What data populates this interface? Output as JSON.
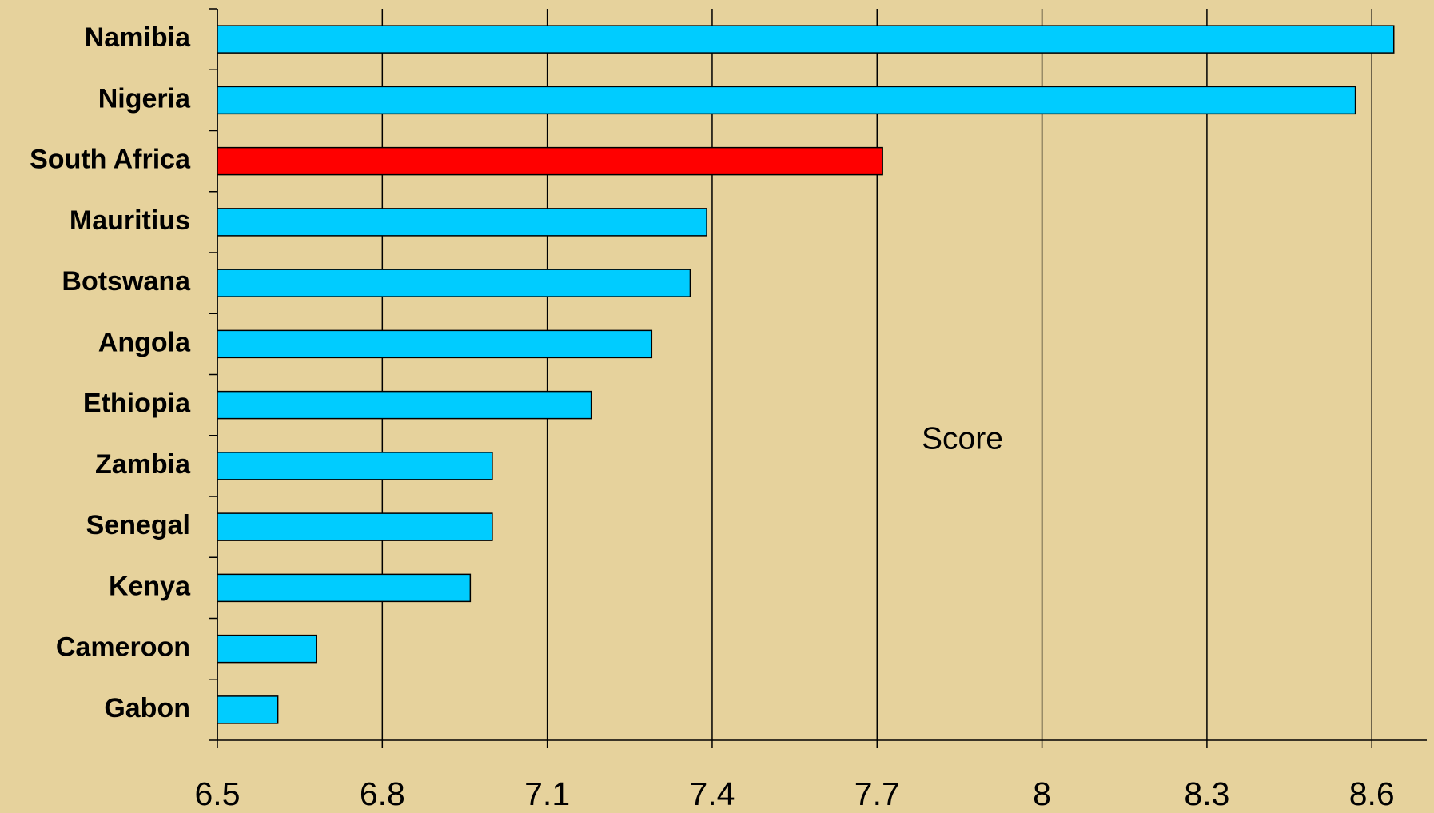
{
  "chart_data": {
    "type": "barh",
    "categories": [
      "Namibia",
      "Nigeria",
      "South Africa",
      "Mauritius",
      "Botswana",
      "Angola",
      "Ethiopia",
      "Zambia",
      "Senegal",
      "Kenya",
      "Cameroon",
      "Gabon"
    ],
    "values": [
      8.64,
      8.57,
      7.71,
      7.39,
      7.36,
      7.29,
      7.18,
      7.0,
      7.0,
      6.96,
      6.68,
      6.61
    ],
    "colors": [
      "#00ccff",
      "#00ccff",
      "#ff0000",
      "#00ccff",
      "#00ccff",
      "#00ccff",
      "#00ccff",
      "#00ccff",
      "#00ccff",
      "#00ccff",
      "#00ccff",
      "#00ccff"
    ],
    "xlim": [
      6.5,
      8.7
    ],
    "xticks": [
      6.5,
      6.8,
      7.1,
      7.4,
      7.7,
      8,
      8.3,
      8.6
    ],
    "grid": true,
    "annotation": "Score"
  }
}
